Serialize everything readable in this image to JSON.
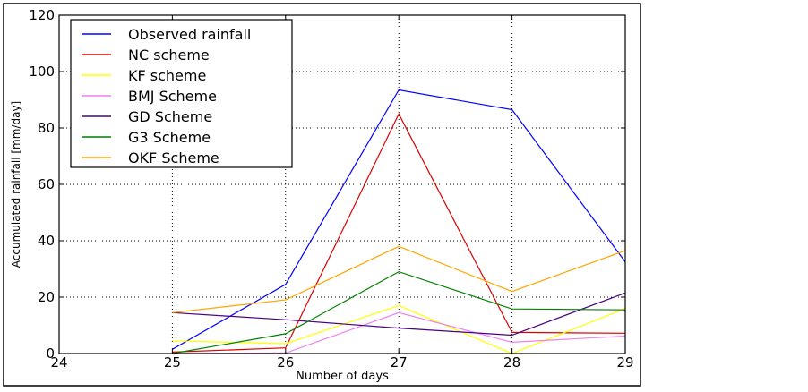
{
  "chart_data": {
    "type": "line",
    "title": "",
    "xlabel": "Number of days",
    "ylabel": "Accumulated rainfall [mm/day]",
    "xlim": [
      24,
      29
    ],
    "ylim": [
      0,
      120
    ],
    "x_ticks": [
      "24",
      "25",
      "26",
      "27",
      "28",
      "29"
    ],
    "y_ticks": [
      "0",
      "20",
      "40",
      "60",
      "80",
      "100",
      "120"
    ],
    "grid": true,
    "legend_position": "top-left",
    "x": [
      25,
      26,
      27,
      28,
      29
    ],
    "series": [
      {
        "name": "Observed rainfall",
        "color": "#0000ff",
        "values": [
          1.5,
          24.5,
          93.5,
          86.5,
          32.5
        ]
      },
      {
        "name": "NC scheme",
        "color": "#dd0000",
        "values": [
          0.5,
          2,
          85,
          7.5,
          7.2
        ]
      },
      {
        "name": "KF scheme",
        "color": "#ffff00",
        "values": [
          4.5,
          3.5,
          17,
          0,
          16
        ]
      },
      {
        "name": "BMJ Scheme",
        "color": "#ee82ee",
        "values": [
          0,
          0.2,
          14.5,
          4,
          6.2
        ]
      },
      {
        "name": "GD Scheme",
        "color": "#4b0082",
        "values": [
          14.5,
          12,
          9,
          6.5,
          21.5
        ]
      },
      {
        "name": "G3 Scheme",
        "color": "#008000",
        "values": [
          0,
          7,
          29,
          15.8,
          15.5
        ]
      },
      {
        "name": "OKF Scheme",
        "color": "#ffa500",
        "values": [
          14.5,
          19,
          38,
          22,
          36.5
        ]
      }
    ]
  }
}
